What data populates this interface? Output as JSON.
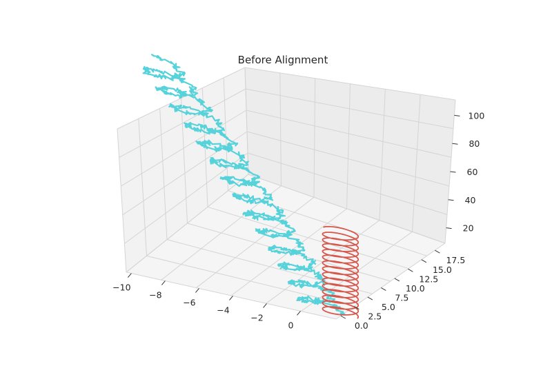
{
  "chart_data": {
    "type": "line",
    "projection": "3d",
    "title": "Before Alignment",
    "xlabel": "",
    "ylabel": "",
    "zlabel": "",
    "xlim": [
      -11.5,
      1.2
    ],
    "ylim": [
      -1.0,
      19.2
    ],
    "zlim": [
      0,
      105
    ],
    "x_ticks": [
      "−10",
      "−8",
      "−6",
      "−4",
      "−2",
      "0"
    ],
    "y_ticks": [
      "0.0",
      "2.5",
      "5.0",
      "7.5",
      "10.0",
      "12.5",
      "15.0",
      "17.5"
    ],
    "z_ticks": [
      "20",
      "40",
      "60",
      "80",
      "100"
    ],
    "grid": true,
    "legend": "none",
    "series": [
      {
        "color": "#56d2db",
        "style": "noisy helix",
        "helix": {
          "x_center": [
            0.1,
            -9.9
          ],
          "y_center": [
            0.1,
            8.0
          ],
          "radius": 1.0,
          "z_range": [
            0,
            100
          ],
          "turns": 14.3
        }
      },
      {
        "color": "#d6574b",
        "style": "smooth helix",
        "helix": {
          "x_center": [
            1.1,
            1.1
          ],
          "y_center": [
            0.1,
            0.1
          ],
          "radius": 1.0,
          "z_range": [
            0,
            51
          ],
          "turns": 14.5
        }
      }
    ]
  }
}
